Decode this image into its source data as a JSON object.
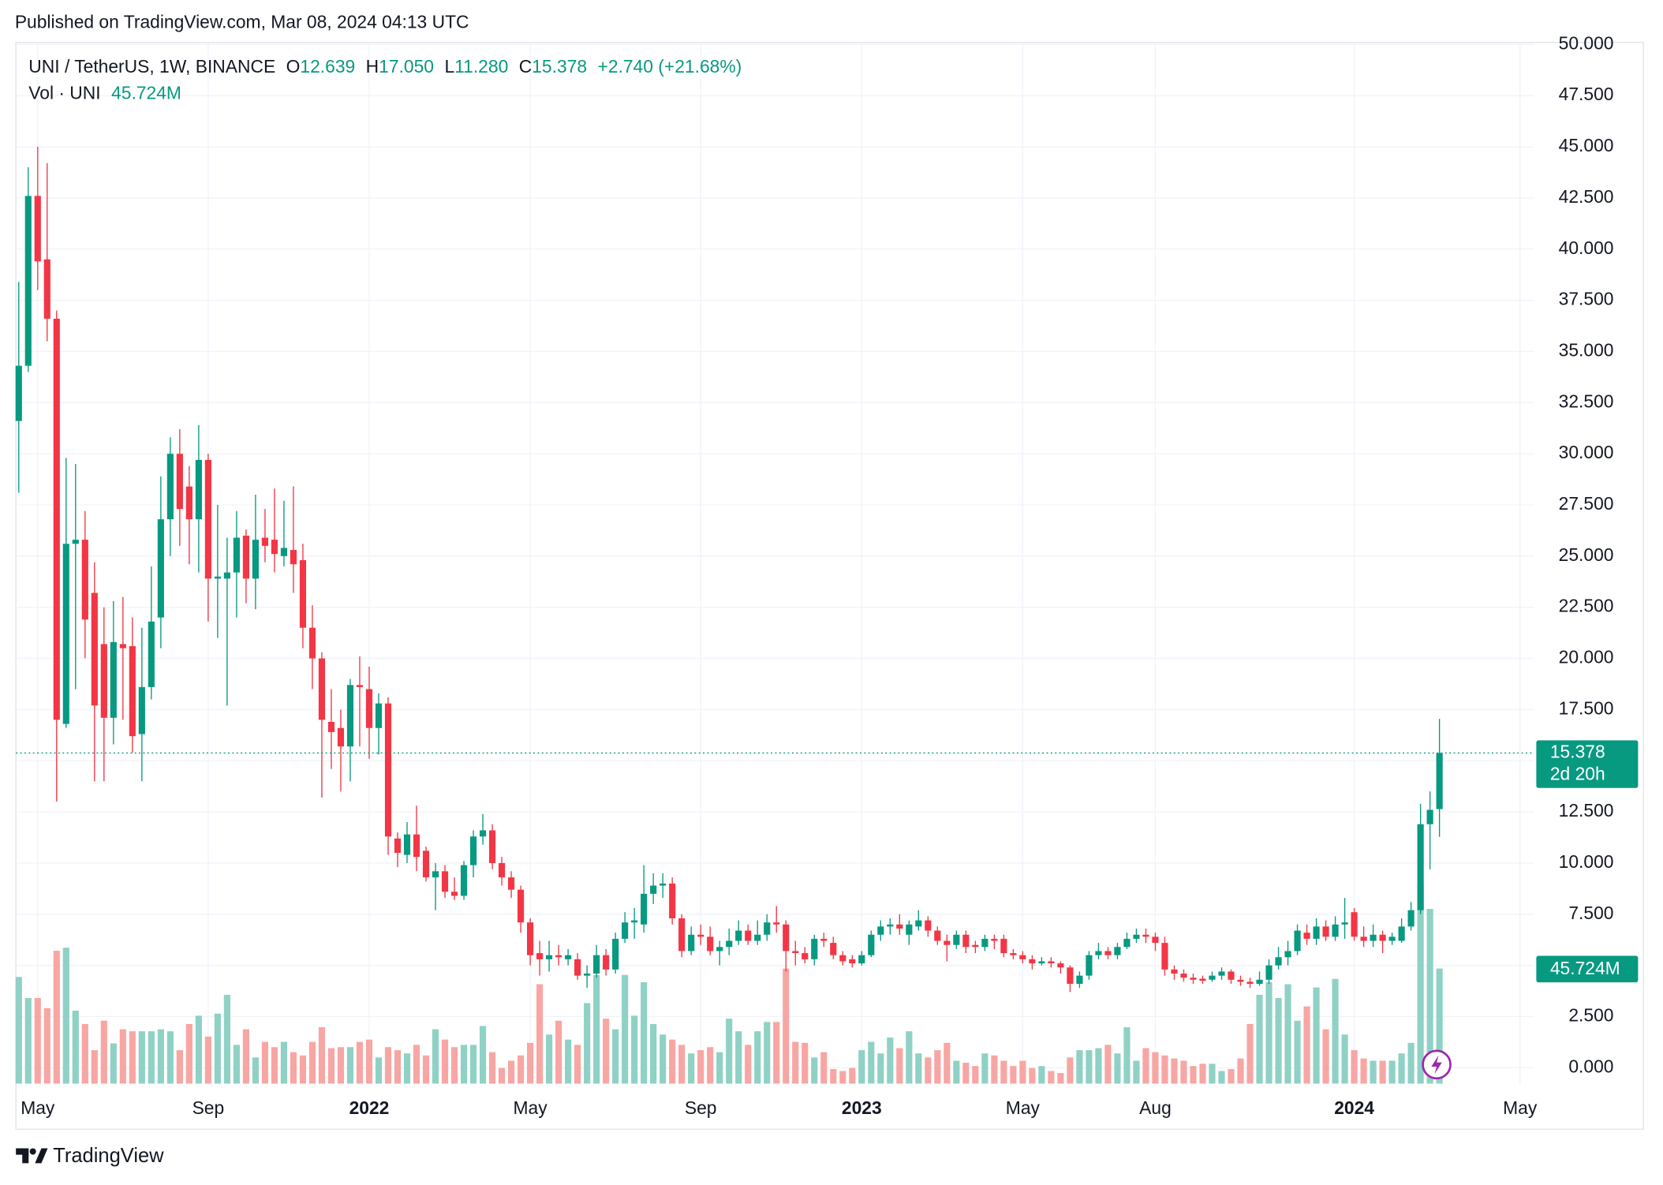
{
  "header": {
    "published": "Published on TradingView.com, Mar 08, 2024 04:13 UTC"
  },
  "legend": {
    "symbol": "UNI / TetherUS, 1W, BINANCE",
    "open_label": "O",
    "open": "12.639",
    "high_label": "H",
    "high": "17.050",
    "low_label": "L",
    "low": "11.280",
    "close_label": "C",
    "close": "15.378",
    "change": "+2.740 (+21.68%)",
    "volume_label": "Vol · UNI",
    "volume": "45.724M"
  },
  "footer": {
    "brand": "TradingView"
  },
  "chart_data": {
    "type": "candlestick",
    "up_color": "#089981",
    "down_color": "#f23645",
    "volume_up_color": "#8fd1c5",
    "volume_down_color": "#f7a6a4",
    "grid": true,
    "xlim": [
      -0.3,
      160
    ],
    "xticks": [
      {
        "value": 2,
        "label": "May"
      },
      {
        "value": 20,
        "label": "Sep"
      },
      {
        "value": 37,
        "label": "2022"
      },
      {
        "value": 54,
        "label": "May"
      },
      {
        "value": 72,
        "label": "Sep"
      },
      {
        "value": 89,
        "label": "2023"
      },
      {
        "value": 106,
        "label": "May"
      },
      {
        "value": 120,
        "label": "Aug"
      },
      {
        "value": 141,
        "label": "2024"
      },
      {
        "value": 158.5,
        "label": "May"
      }
    ],
    "ylim": [
      -0.777,
      50.1
    ],
    "yticks": [
      {
        "value": 0,
        "label": "0.000"
      },
      {
        "value": 2.5,
        "label": "2.500"
      },
      {
        "value": 5,
        "label": "5.000"
      },
      {
        "value": 7.5,
        "label": "7.500"
      },
      {
        "value": 10,
        "label": "10.000"
      },
      {
        "value": 12.5,
        "label": "12.500"
      },
      {
        "value": 15,
        "label": "15.000"
      },
      {
        "value": 17.5,
        "label": "17.500"
      },
      {
        "value": 20,
        "label": "20.000"
      },
      {
        "value": 22.5,
        "label": "22.500"
      },
      {
        "value": 25,
        "label": "25.000"
      },
      {
        "value": 27.5,
        "label": "27.500"
      },
      {
        "value": 30,
        "label": "30.000"
      },
      {
        "value": 32.5,
        "label": "32.500"
      },
      {
        "value": 35,
        "label": "35.000"
      },
      {
        "value": 37.5,
        "label": "37.500"
      },
      {
        "value": 40,
        "label": "40.000"
      },
      {
        "value": 42.5,
        "label": "42.500"
      },
      {
        "value": 45,
        "label": "45.000"
      },
      {
        "value": 47.5,
        "label": "47.500"
      },
      {
        "value": 50,
        "label": "50.000"
      }
    ],
    "last_price": {
      "value": 15.378,
      "label": "15.378"
    },
    "countdown": "2d 20h",
    "last_volume": {
      "value": 45.724,
      "label": "45.724M"
    },
    "open": [
      31.6,
      34.3,
      42.6,
      39.5,
      36.6,
      16.8,
      25.6,
      25.8,
      23.2,
      20.7,
      17.1,
      20.7,
      20.6,
      16.3,
      18.6,
      22,
      26.8,
      30,
      28.4,
      26.8,
      29.7,
      23.9,
      23.9,
      24.2,
      26,
      23.9,
      25.9,
      25.8,
      25,
      25.3,
      24.8,
      21.5,
      20,
      16.9,
      16.6,
      15.7,
      18.7,
      18.5,
      16.6,
      17.8,
      11.2,
      10.4,
      11.4,
      10.6,
      9.3,
      9.6,
      8.6,
      8.4,
      9.9,
      11.3,
      11.6,
      10,
      9.3,
      8.7,
      7.1,
      5.6,
      5.3,
      5.5,
      5.3,
      5.3,
      4.5,
      4.6,
      5.5,
      4.8,
      6.3,
      7.1,
      7,
      8.5,
      8.9,
      9,
      7.3,
      5.7,
      6.5,
      6.4,
      5.7,
      5.9,
      6.2,
      6.7,
      6.2,
      6.5,
      7.1,
      7,
      5.7,
      5.6,
      5.3,
      6.3,
      6.1,
      5.5,
      5.3,
      5.1,
      5.5,
      6.5,
      6.9,
      7,
      6.5,
      6.9,
      7.2,
      6.7,
      6.2,
      6,
      6.5,
      6,
      5.9,
      6.3,
      6.3,
      5.6,
      5.5,
      5.3,
      5.1,
      5.2,
      5.1,
      4.9,
      4.1,
      4.5,
      5.5,
      5.7,
      5.5,
      5.9,
      6.3,
      6.5,
      6.4,
      6.1,
      4.8,
      4.6,
      4.4,
      4.35,
      4.3,
      4.5,
      4.7,
      4.3,
      4.2,
      4.1,
      4.3,
      5,
      5.4,
      5.7,
      6.6,
      6.3,
      6.9,
      6.4,
      7,
      7.6,
      6.4,
      6.2,
      6.5,
      6.2,
      6.2,
      6.9,
      7.7,
      11.9,
      12.639
    ],
    "high": [
      38.4,
      44,
      45,
      44.2,
      37,
      29.8,
      29.5,
      27.2,
      24.7,
      22.5,
      22.8,
      23,
      22,
      21.5,
      24.5,
      28.9,
      30.8,
      31.2,
      29.4,
      31.4,
      30,
      27.5,
      25.9,
      27.2,
      26.3,
      28,
      27.3,
      28.3,
      27.7,
      28.4,
      25.6,
      22.6,
      20.3,
      18.5,
      17.5,
      19,
      20.1,
      19.6,
      18.3,
      18.1,
      11.5,
      12,
      12.8,
      10.8,
      10,
      9.9,
      9.3,
      10.1,
      11.6,
      12.4,
      11.9,
      10.3,
      9.6,
      8.9,
      7.3,
      6.2,
      6.2,
      6,
      5.8,
      5.6,
      5,
      6,
      5.8,
      6.6,
      7.6,
      7.8,
      9.9,
      9.5,
      9.5,
      9.3,
      7.5,
      6.9,
      7,
      6.9,
      6.2,
      6.8,
      7.2,
      7,
      7.2,
      7.5,
      7.9,
      7.2,
      6.2,
      5.9,
      6.5,
      6.6,
      6.4,
      5.7,
      5.5,
      5.7,
      6.7,
      7.2,
      7.3,
      7.5,
      7.2,
      7.7,
      7.4,
      6.9,
      6.5,
      6.7,
      6.7,
      6.2,
      6.5,
      6.5,
      6.5,
      5.8,
      5.7,
      5.5,
      5.4,
      5.4,
      5.2,
      5,
      4.7,
      5.7,
      6.1,
      5.9,
      6.1,
      6.6,
      6.8,
      6.8,
      6.6,
      6.4,
      5,
      4.8,
      4.6,
      4.5,
      4.7,
      4.9,
      4.8,
      4.5,
      4.4,
      4.7,
      5.3,
      5.9,
      6.2,
      7,
      7,
      7.3,
      7.2,
      7.4,
      8.3,
      7.8,
      6.9,
      7,
      6.7,
      6.6,
      7.3,
      8.1,
      12.9,
      13.5,
      17.05
    ],
    "low": [
      28.1,
      34,
      38,
      35.5,
      13,
      16.6,
      18.5,
      20,
      14,
      14,
      15.8,
      17,
      15.4,
      14,
      18,
      20.5,
      25,
      25.5,
      24.6,
      24.2,
      21.8,
      21,
      17.7,
      22,
      22.7,
      22.4,
      24.7,
      24.2,
      24.5,
      23.2,
      20.5,
      18.5,
      13.2,
      14.6,
      13.5,
      14,
      15.7,
      15.1,
      15.3,
      10.4,
      9.8,
      10,
      9.6,
      9.1,
      7.7,
      8.3,
      8.2,
      8.2,
      9.3,
      10.9,
      9.7,
      8.9,
      8.3,
      6.6,
      5,
      4.5,
      4.7,
      5,
      5,
      4.3,
      3.9,
      4.4,
      4.5,
      4.6,
      6.1,
      6.3,
      6.6,
      8,
      8.3,
      7,
      5.4,
      5.5,
      6,
      5.5,
      5,
      5.5,
      6,
      6,
      6,
      6.2,
      6.6,
      4.7,
      5,
      5.1,
      5,
      5.9,
      5.3,
      5,
      4.9,
      5,
      5.4,
      6.2,
      6.5,
      6.5,
      6,
      6.7,
      6.4,
      6,
      5.2,
      5.8,
      5.6,
      5.6,
      5.7,
      5.8,
      5.4,
      5.3,
      5.1,
      4.8,
      5,
      4.9,
      4.6,
      3.7,
      3.9,
      4.3,
      5.3,
      5.3,
      5.3,
      5.8,
      6.1,
      6.1,
      5.7,
      4.5,
      4.3,
      4.2,
      4.1,
      4.1,
      4.2,
      4.3,
      4.1,
      4,
      3.9,
      4,
      4.1,
      4.8,
      5,
      5.5,
      6,
      6,
      6.2,
      6.2,
      6.3,
      6.2,
      5.9,
      5.9,
      5.6,
      6,
      6.1,
      6.7,
      7.5,
      9.7,
      11.28
    ],
    "close": [
      34.3,
      42.6,
      39.4,
      36.6,
      17,
      25.6,
      25.8,
      21.9,
      17.7,
      17.1,
      20.8,
      20.5,
      16.2,
      18.6,
      21.8,
      26.8,
      30,
      27.3,
      26.8,
      29.7,
      23.9,
      24,
      24.2,
      25.9,
      23.9,
      25.8,
      25.5,
      25.1,
      25.4,
      24.6,
      21.5,
      20,
      17,
      16.4,
      15.7,
      18.7,
      18.6,
      16.6,
      17.8,
      11.3,
      10.5,
      11.4,
      10.3,
      9.3,
      9.6,
      8.6,
      8.4,
      9.9,
      11.3,
      11.6,
      10,
      9.3,
      8.7,
      7.1,
      5.5,
      5.3,
      5.5,
      5.4,
      5.5,
      4.5,
      4.6,
      5.5,
      4.8,
      6.3,
      7.1,
      7.2,
      8.5,
      8.9,
      9,
      7.3,
      5.7,
      6.5,
      6.4,
      5.7,
      5.9,
      6.2,
      6.7,
      6.2,
      6.5,
      7.1,
      7,
      5.7,
      5.6,
      5.3,
      6.3,
      6.2,
      5.5,
      5.2,
      5.1,
      5.5,
      6.5,
      6.9,
      7,
      6.8,
      7,
      7.2,
      6.7,
      6.2,
      6,
      6.5,
      5.9,
      5.9,
      6.3,
      6.2,
      5.6,
      5.5,
      5.3,
      5.1,
      5.2,
      5.1,
      4.9,
      4.1,
      4.5,
      5.5,
      5.7,
      5.5,
      5.9,
      6.3,
      6.5,
      6.4,
      6.1,
      4.8,
      4.6,
      4.4,
      4.3,
      4.25,
      4.5,
      4.7,
      4.3,
      4.2,
      4.1,
      4.3,
      5,
      5.4,
      5.7,
      6.7,
      6.3,
      6.9,
      6.4,
      7,
      7.1,
      6.4,
      6.2,
      6.5,
      6.2,
      6.4,
      6.9,
      7.7,
      11.9,
      12.6,
      15.378
    ],
    "volume": [
      42.4,
      34,
      34,
      30,
      52.8,
      54,
      29,
      23.7,
      13.3,
      25,
      16,
      21.6,
      20.8,
      20.8,
      20.8,
      21.6,
      20.8,
      13.3,
      23.7,
      27,
      18.7,
      27.8,
      35.3,
      15.4,
      21.6,
      10.4,
      16.6,
      14.5,
      16.6,
      12.5,
      11.2,
      16.6,
      22.4,
      14.1,
      14.5,
      14.5,
      16.6,
      17.5,
      10.4,
      14.5,
      13.3,
      12,
      15.4,
      11.2,
      21.6,
      17.5,
      14.5,
      15.4,
      15.4,
      22.9,
      12.5,
      6.2,
      9.1,
      11.2,
      16.2,
      39.5,
      19.5,
      25,
      17.5,
      15.4,
      32,
      43.2,
      25.8,
      21.6,
      43.2,
      27,
      40.3,
      23.7,
      19.5,
      17.5,
      15.4,
      12,
      13.3,
      14.5,
      12.5,
      25.8,
      20.8,
      15.4,
      20.8,
      24.5,
      24.5,
      45.7,
      16.6,
      16.2,
      10.4,
      12.5,
      5.8,
      5,
      6.2,
      13.3,
      16.6,
      12,
      18.3,
      14.1,
      20.8,
      12,
      10.4,
      13.3,
      16.2,
      9.1,
      8.3,
      7,
      12,
      11.2,
      9.1,
      7,
      9.1,
      6.2,
      7,
      5,
      4.2,
      10.4,
      13.3,
      13.3,
      14.1,
      15.4,
      12,
      22.4,
      9.1,
      14.1,
      12.5,
      11.2,
      10,
      9.1,
      7,
      7.9,
      7.9,
      5,
      5.8,
      10,
      23.7,
      35.3,
      40.3,
      34,
      39.5,
      25,
      30.7,
      38.2,
      21.6,
      41.6,
      19.5,
      13.3,
      10,
      9.1,
      9.1,
      9.1,
      12,
      16.2,
      78.6,
      69.4,
      45.724
    ]
  }
}
